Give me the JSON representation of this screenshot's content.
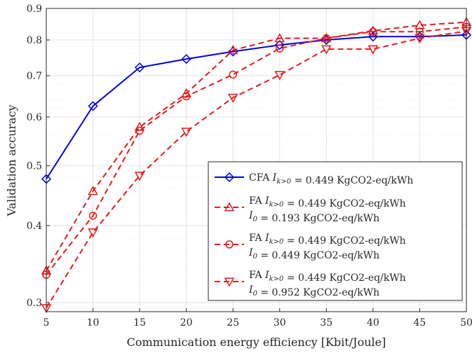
{
  "chart_data": {
    "type": "line",
    "xlabel": "Communication energy efficiency [Kbit/Joule]",
    "ylabel": "Validation accuracy",
    "xlim": [
      5,
      50
    ],
    "ylim": [
      0.29,
      0.9
    ],
    "yscale": "log",
    "grid": true,
    "legend_position": "bottom-right",
    "x_ticks": [
      "5",
      "10",
      "15",
      "20",
      "25",
      "30",
      "35",
      "40",
      "45",
      "50"
    ],
    "y_ticks": [
      "0.3",
      "0.4",
      "0.5",
      "0.6",
      "0.7",
      "0.8",
      "0.9"
    ],
    "x": [
      5,
      10,
      15,
      20,
      25,
      30,
      35,
      40,
      45,
      50
    ],
    "series": [
      {
        "legend": [
          "CFA I_{k>0} = 0.449 KgCO2-eq/kWh"
        ],
        "color": "#0000e6",
        "line_style": "solid",
        "marker": "diamond",
        "values": [
          0.476,
          0.625,
          0.722,
          0.745,
          0.766,
          0.785,
          0.8,
          0.81,
          0.81,
          0.815
        ]
      },
      {
        "legend": [
          "FA I_{k>0} = 0.449 KgCO2-eq/kWh",
          "I_0 = 0.193 KgCO2-eq/kWh"
        ],
        "color": "#e61a1a",
        "line_style": "dashed",
        "marker": "triangle-up",
        "values": [
          0.338,
          0.455,
          0.578,
          0.655,
          0.77,
          0.805,
          0.805,
          0.828,
          0.845,
          0.855
        ]
      },
      {
        "legend": [
          "FA I_{k>0} = 0.449 KgCO2-eq/kWh",
          "I_0 = 0.449 KgCO2-eq/kWh"
        ],
        "color": "#e61a1a",
        "line_style": "dashed",
        "marker": "circle",
        "values": [
          0.333,
          0.415,
          0.57,
          0.648,
          0.703,
          0.775,
          0.805,
          0.825,
          0.825,
          0.84
        ]
      },
      {
        "legend": [
          "FA I_{k>0} = 0.449 KgCO2-eq/kWh",
          "I_0 = 0.952 KgCO2-eq/kWh"
        ],
        "color": "#e61a1a",
        "line_style": "dashed",
        "marker": "triangle-down",
        "values": [
          0.294,
          0.39,
          0.482,
          0.568,
          0.645,
          0.702,
          0.773,
          0.773,
          0.805,
          0.827
        ]
      }
    ]
  }
}
